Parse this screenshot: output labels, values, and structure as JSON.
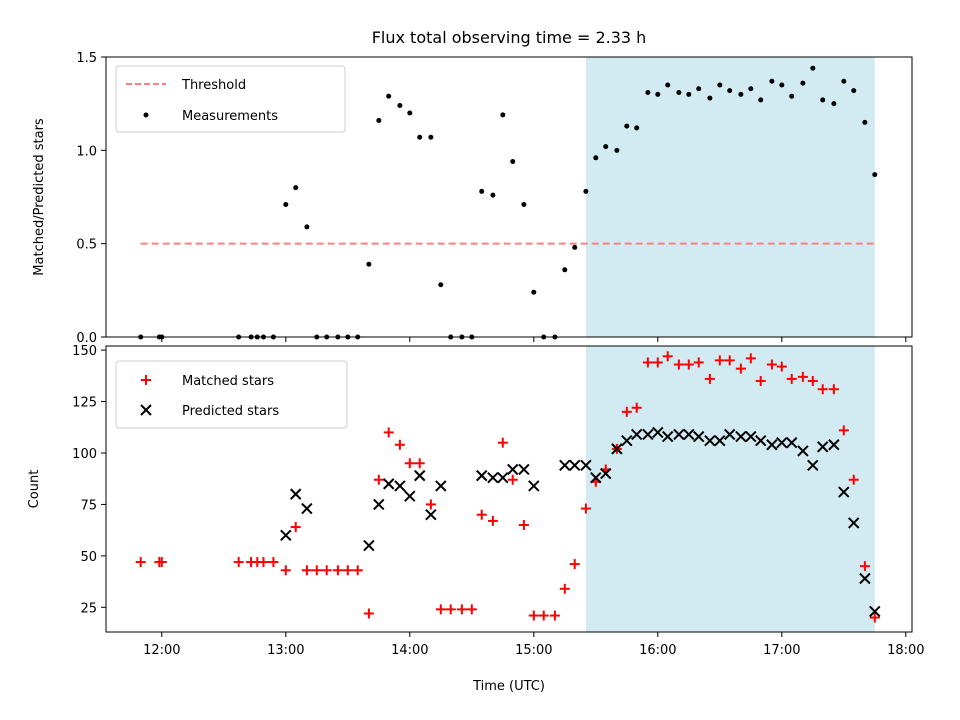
{
  "chart_data": [
    {
      "type": "scatter",
      "title": "Flux total observing time = 2.33 h",
      "xlabel": "",
      "ylabel": "Matched/Predicted stars",
      "ylim": [
        0,
        1.5
      ],
      "xlim": [
        11.55,
        18.05
      ],
      "yticks": [
        "0.0",
        "0.5",
        "1.0",
        "1.5"
      ],
      "grid": false,
      "legend": "top-left",
      "highlight": {
        "x_start": 15.42,
        "x_end": 17.75,
        "color": "#add8e6"
      },
      "threshold": {
        "name": "Threshold",
        "value": 0.5,
        "x_start": 11.83,
        "x_end": 17.75,
        "color": "#ff7f7f"
      },
      "series": [
        {
          "name": "Measurements",
          "color": "#000000",
          "x": [
            11.83,
            11.98,
            12.0,
            12.62,
            12.72,
            12.77,
            12.82,
            12.9,
            13.0,
            13.08,
            13.17,
            13.25,
            13.33,
            13.42,
            13.5,
            13.58,
            13.67,
            13.75,
            13.83,
            13.92,
            14.0,
            14.08,
            14.17,
            14.25,
            14.33,
            14.42,
            14.5,
            14.58,
            14.67,
            14.75,
            14.83,
            14.92,
            15.0,
            15.08,
            15.17,
            15.25,
            15.33,
            15.42,
            15.5,
            15.58,
            15.67,
            15.75,
            15.83,
            15.92,
            16.0,
            16.08,
            16.17,
            16.25,
            16.33,
            16.42,
            16.5,
            16.58,
            16.67,
            16.75,
            16.83,
            16.92,
            17.0,
            17.08,
            17.17,
            17.25,
            17.33,
            17.42,
            17.5,
            17.58,
            17.67,
            17.75
          ],
          "y": [
            0.0,
            0.0,
            0.0,
            0.0,
            0.0,
            0.0,
            0.0,
            0.0,
            0.71,
            0.8,
            0.59,
            0.0,
            0.0,
            0.0,
            0.0,
            0.0,
            0.39,
            1.16,
            1.29,
            1.24,
            1.2,
            1.07,
            1.07,
            0.28,
            0.0,
            0.0,
            0.0,
            0.78,
            0.76,
            1.19,
            0.94,
            0.71,
            0.24,
            0.0,
            0.0,
            0.36,
            0.48,
            0.78,
            0.96,
            1.02,
            1.0,
            1.13,
            1.12,
            1.31,
            1.3,
            1.35,
            1.31,
            1.3,
            1.33,
            1.28,
            1.35,
            1.32,
            1.3,
            1.33,
            1.27,
            1.37,
            1.35,
            1.29,
            1.36,
            1.44,
            1.27,
            1.25,
            1.37,
            1.32,
            1.15,
            0.87
          ]
        }
      ]
    },
    {
      "type": "scatter",
      "xlabel": "Time (UTC)",
      "ylabel": "Count",
      "ylim": [
        13,
        152
      ],
      "xlim": [
        11.55,
        18.05
      ],
      "xticks": [
        "12:00",
        "13:00",
        "14:00",
        "15:00",
        "16:00",
        "17:00",
        "18:00"
      ],
      "yticks": [
        "25",
        "50",
        "75",
        "100",
        "125",
        "150"
      ],
      "grid": false,
      "legend": "top-left",
      "highlight": {
        "x_start": 15.42,
        "x_end": 17.75,
        "color": "#add8e6"
      },
      "series": [
        {
          "name": "Matched stars",
          "color": "#ff0000",
          "marker": "plus",
          "x": [
            11.83,
            11.98,
            12.0,
            12.62,
            12.72,
            12.77,
            12.82,
            12.9,
            13.0,
            13.08,
            13.17,
            13.25,
            13.33,
            13.42,
            13.5,
            13.58,
            13.67,
            13.75,
            13.83,
            13.92,
            14.0,
            14.08,
            14.17,
            14.25,
            14.33,
            14.42,
            14.5,
            14.58,
            14.67,
            14.75,
            14.83,
            14.92,
            15.0,
            15.08,
            15.17,
            15.25,
            15.33,
            15.42,
            15.5,
            15.58,
            15.67,
            15.75,
            15.83,
            15.92,
            16.0,
            16.08,
            16.17,
            16.25,
            16.33,
            16.42,
            16.5,
            16.58,
            16.67,
            16.75,
            16.83,
            16.92,
            17.0,
            17.08,
            17.17,
            17.25,
            17.33,
            17.42,
            17.5,
            17.58,
            17.67,
            17.75
          ],
          "y": [
            47,
            47,
            47,
            47,
            47,
            47,
            47,
            47,
            43,
            64,
            43,
            43,
            43,
            43,
            43,
            43,
            22,
            87,
            110,
            104,
            95,
            95,
            75,
            24,
            24,
            24,
            24,
            70,
            67,
            105,
            87,
            65,
            21,
            21,
            21,
            34,
            46,
            73,
            86,
            92,
            102,
            120,
            122,
            144,
            144,
            147,
            143,
            143,
            144,
            136,
            145,
            145,
            141,
            146,
            135,
            143,
            142,
            136,
            137,
            135,
            131,
            131,
            111,
            87,
            45,
            20
          ]
        },
        {
          "name": "Predicted stars",
          "color": "#000000",
          "marker": "x",
          "x": [
            13.0,
            13.08,
            13.17,
            13.67,
            13.75,
            13.83,
            13.92,
            14.0,
            14.08,
            14.17,
            14.25,
            14.58,
            14.67,
            14.75,
            14.83,
            14.92,
            15.0,
            15.25,
            15.33,
            15.42,
            15.5,
            15.58,
            15.67,
            15.75,
            15.83,
            15.92,
            16.0,
            16.08,
            16.17,
            16.25,
            16.33,
            16.42,
            16.5,
            16.58,
            16.67,
            16.75,
            16.83,
            16.92,
            17.0,
            17.08,
            17.17,
            17.25,
            17.33,
            17.42,
            17.5,
            17.58,
            17.67,
            17.75
          ],
          "y": [
            60,
            80,
            73,
            55,
            75,
            85,
            84,
            79,
            89,
            70,
            84,
            89,
            88,
            88,
            92,
            92,
            84,
            94,
            94,
            94,
            88,
            90,
            102,
            106,
            109,
            109,
            110,
            108,
            109,
            109,
            108,
            106,
            106,
            109,
            108,
            108,
            106,
            104,
            105,
            105,
            101,
            94,
            103,
            104,
            81,
            66,
            39,
            23
          ]
        }
      ]
    }
  ]
}
